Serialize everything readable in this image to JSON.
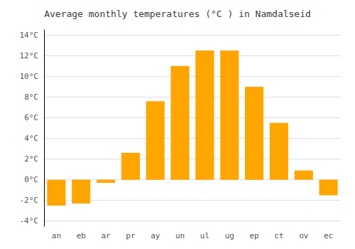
{
  "chart_data": {
    "type": "bar",
    "title": "Average monthly temperatures (°C ) in Namdalseid",
    "categories": [
      "an",
      "eb",
      "ar",
      "pr",
      "ay",
      "un",
      "ul",
      "ug",
      "ep",
      "ct",
      "ov",
      "ec"
    ],
    "values": [
      -2.5,
      -2.3,
      -0.3,
      2.6,
      7.6,
      11.0,
      12.5,
      12.5,
      9.0,
      5.5,
      0.9,
      -1.5
    ],
    "color": "#FFA500",
    "ylim": [
      -4.5,
      14.5
    ],
    "yticks": [
      {
        "value": -4,
        "label": "-4°C"
      },
      {
        "value": -2,
        "label": "-2°C"
      },
      {
        "value": 0,
        "label": "0°C"
      },
      {
        "value": 2,
        "label": "2°C"
      },
      {
        "value": 4,
        "label": "4°C"
      },
      {
        "value": 6,
        "label": "6°C"
      },
      {
        "value": 8,
        "label": "8°C"
      },
      {
        "value": 10,
        "label": "10°C"
      },
      {
        "value": 12,
        "label": "12°C"
      },
      {
        "value": 14,
        "label": "14°C"
      }
    ],
    "grid": true
  }
}
